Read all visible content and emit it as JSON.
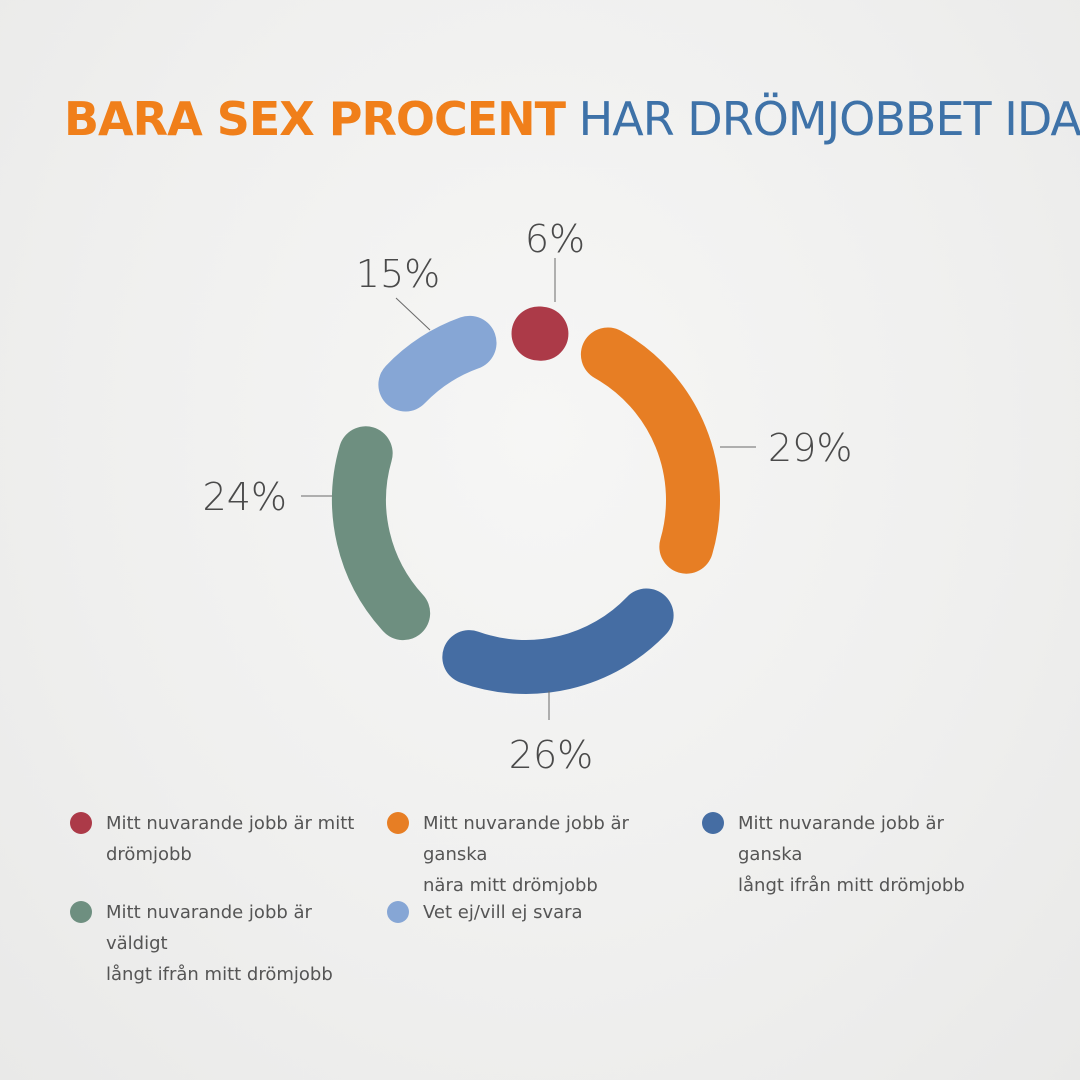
{
  "title": {
    "emphasis": "BARA SEX PROCENT",
    "rest": " HAR DRÖMJOBBET IDAG",
    "emphasis_color": "#f07f1a",
    "rest_color": "#3e72a8"
  },
  "chart_data": {
    "type": "pie",
    "style": "donut",
    "title": "BARA SEX PROCENT HAR DRÖMJOBBET IDAG",
    "slices": [
      {
        "label": "Mitt nuvarande jobb är mitt drömjobb",
        "value": 6,
        "value_label": "6%",
        "color": "#ac3a48"
      },
      {
        "label": "Mitt nuvarande jobb är ganska nära mitt drömjobb",
        "value": 29,
        "value_label": "29%",
        "color": "#e77e24"
      },
      {
        "label": "Mitt nuvarande jobb är ganska långt ifrån mitt drömjobb",
        "value": 26,
        "value_label": "26%",
        "color": "#456da3"
      },
      {
        "label": "Mitt nuvarande jobb är väldigt långt ifrån mitt drömjobb",
        "value": 24,
        "value_label": "24%",
        "color": "#6e8f80"
      },
      {
        "label": "Vet ej/vill ej svara",
        "value": 15,
        "value_label": "15%",
        "color": "#86a6d5"
      }
    ],
    "legend_position": "bottom"
  },
  "legend": [
    {
      "line1": "Mitt nuvarande jobb är mitt",
      "line2": "drömjobb",
      "color": "#ac3a48"
    },
    {
      "line1": "Mitt nuvarande jobb är ganska",
      "line2": "nära mitt drömjobb",
      "color": "#e77e24"
    },
    {
      "line1": "Mitt nuvarande jobb är ganska",
      "line2": "långt ifrån mitt drömjobb",
      "color": "#456da3"
    },
    {
      "line1": "Mitt nuvarande jobb är väldigt",
      "line2": "långt ifrån mitt drömjobb",
      "color": "#6e8f80"
    },
    {
      "line1": "Vet ej/vill ej svara",
      "line2": "",
      "color": "#86a6d5"
    }
  ]
}
